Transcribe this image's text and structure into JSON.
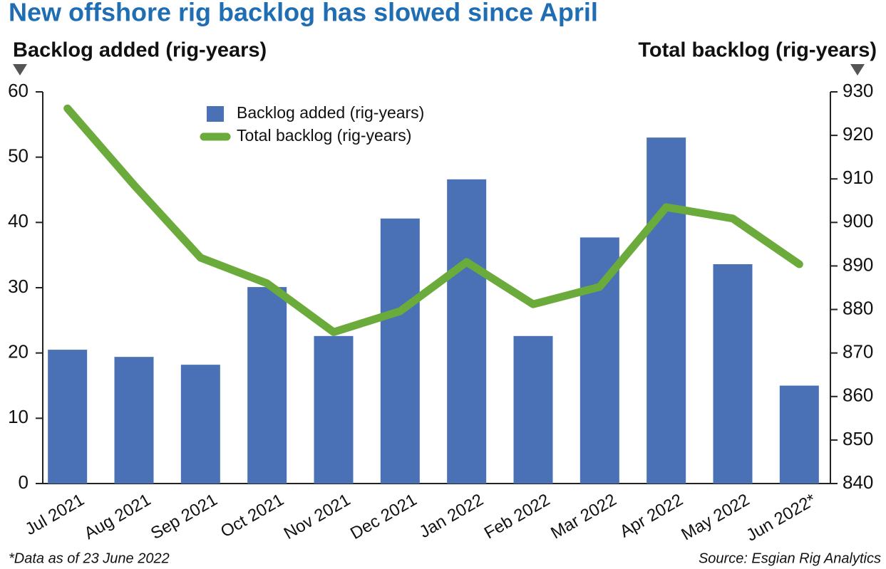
{
  "chart_data": {
    "type": "bar-line",
    "title": "New offshore rig backlog has slowed since April",
    "y_label": "Backlog added (rig-years)",
    "y2_label": "Total backlog (rig-years)",
    "categories": [
      "Jul 2021",
      "Aug 2021",
      "Sep 2021",
      "Oct 2021",
      "Nov 2021",
      "Dec 2021",
      "Jan 2022",
      "Feb 2022",
      "Mar 2022",
      "Apr 2022",
      "May 2022",
      "Jun 2022*"
    ],
    "series": [
      {
        "name": "Backlog added (rig-years)",
        "type": "bar",
        "color": "#4a70b5",
        "values": [
          20.5,
          19.4,
          18.2,
          30.1,
          22.6,
          40.6,
          46.6,
          22.6,
          37.7,
          53.0,
          33.6,
          15.0
        ]
      },
      {
        "name": "Total backlog (rig-years)",
        "type": "line",
        "axis": "y2",
        "color": "#6aab3b",
        "values": [
          926.2,
          908.6,
          891.9,
          886.0,
          874.8,
          879.6,
          890.9,
          881.2,
          885.2,
          903.5,
          900.9,
          890.4
        ]
      }
    ],
    "ylim": [
      0,
      60
    ],
    "yticks": [
      0,
      10,
      20,
      30,
      40,
      50,
      60
    ],
    "y2lim": [
      840,
      930
    ],
    "y2ticks": [
      840,
      850,
      860,
      870,
      880,
      890,
      900,
      910,
      920,
      930
    ],
    "legend": "upper left",
    "footnote": "*Data as of 23 June 2022",
    "source": "Source: Esgian Rig Analytics"
  }
}
